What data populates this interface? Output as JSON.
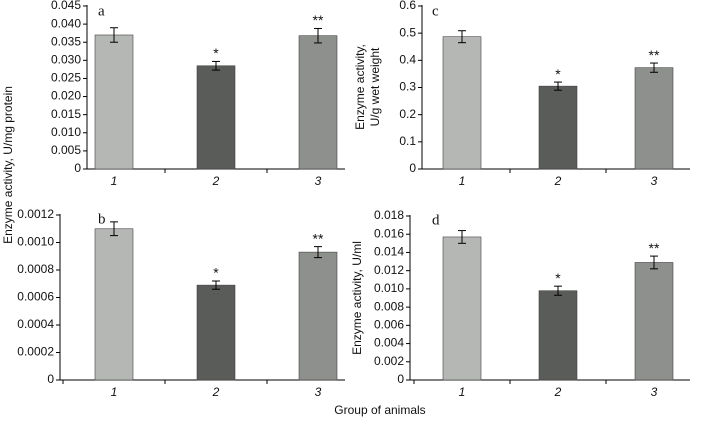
{
  "xlabel": "Group of animals",
  "chart_data": [
    {
      "type": "bar",
      "title": "a",
      "ylabel": "Enzyme activity, U/mg protein",
      "categories": [
        "1",
        "2",
        "3"
      ],
      "values": [
        0.037,
        0.0285,
        0.0368
      ],
      "errors": [
        0.002,
        0.0012,
        0.002
      ],
      "annotations": [
        null,
        "*",
        "**"
      ],
      "colors": [
        "#b5b7b4",
        "#5a5c59",
        "#8e908d"
      ],
      "ylim": [
        0,
        0.045
      ],
      "yticks": [
        0,
        0.005,
        {
          "value": 0.01,
          "label": "0.010"
        },
        0.015,
        {
          "value": 0.02,
          "label": "0.020"
        },
        0.025,
        {
          "value": 0.03,
          "label": "0.030"
        },
        0.035,
        {
          "value": 0.04,
          "label": "0.040"
        },
        0.045
      ]
    },
    {
      "type": "bar",
      "title": "b",
      "categories": [
        "1",
        "2",
        "3"
      ],
      "values": [
        0.0011,
        0.00069,
        0.00093
      ],
      "errors": [
        5e-05,
        3e-05,
        4e-05
      ],
      "annotations": [
        null,
        "*",
        "**"
      ],
      "colors": [
        "#b5b7b4",
        "#5a5c59",
        "#8e908d"
      ],
      "ylim": [
        0,
        0.0012
      ],
      "yticks": [
        0,
        0.0002,
        0.0004,
        0.0006,
        0.0008,
        {
          "value": 0.001,
          "label": "0.0010"
        },
        0.0012
      ]
    },
    {
      "type": "bar",
      "title": "c",
      "ylabel": [
        "Enzyme activity,",
        "U/g wet weight"
      ],
      "categories": [
        "1",
        "2",
        "3"
      ],
      "values": [
        0.487,
        0.305,
        0.373
      ],
      "errors": [
        0.022,
        0.015,
        0.017
      ],
      "annotations": [
        null,
        "*",
        "**"
      ],
      "colors": [
        "#b5b7b4",
        "#5a5c59",
        "#8e908d"
      ],
      "ylim": [
        0,
        0.6
      ],
      "yticks": [
        0,
        0.1,
        0.2,
        0.3,
        0.4,
        0.5,
        0.6
      ]
    },
    {
      "type": "bar",
      "title": "d",
      "ylabel": "Enzyme activity, U/ml",
      "categories": [
        "1",
        "2",
        "3"
      ],
      "values": [
        0.0157,
        0.0098,
        0.0129
      ],
      "errors": [
        0.0007,
        0.0005,
        0.0007
      ],
      "annotations": [
        null,
        "*",
        "**"
      ],
      "colors": [
        "#b5b7b4",
        "#5a5c59",
        "#8e908d"
      ],
      "ylim": [
        0,
        0.018
      ],
      "yticks": [
        0,
        0.002,
        0.004,
        0.006,
        0.008,
        {
          "value": 0.01,
          "label": "0.010"
        },
        0.012,
        0.014,
        0.016,
        0.018
      ]
    }
  ]
}
